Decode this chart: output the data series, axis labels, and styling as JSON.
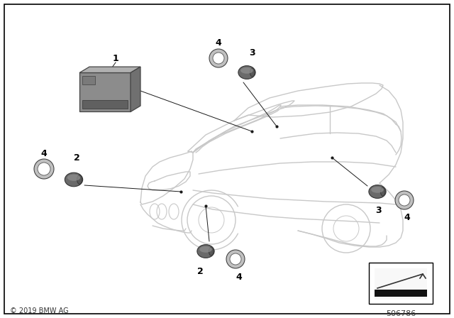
{
  "background_color": "#ffffff",
  "border_color": "#000000",
  "copyright_text": "© 2019 BMW AG",
  "part_number": "506786",
  "line_color": "#1a1a1a",
  "car_line_color": "#c8c8c8",
  "part_gray_dark": "#6e6e6e",
  "part_gray_mid": "#8a8a8a",
  "part_gray_light": "#b0b0b0",
  "label_fontsize": 9,
  "copyright_fontsize": 7
}
